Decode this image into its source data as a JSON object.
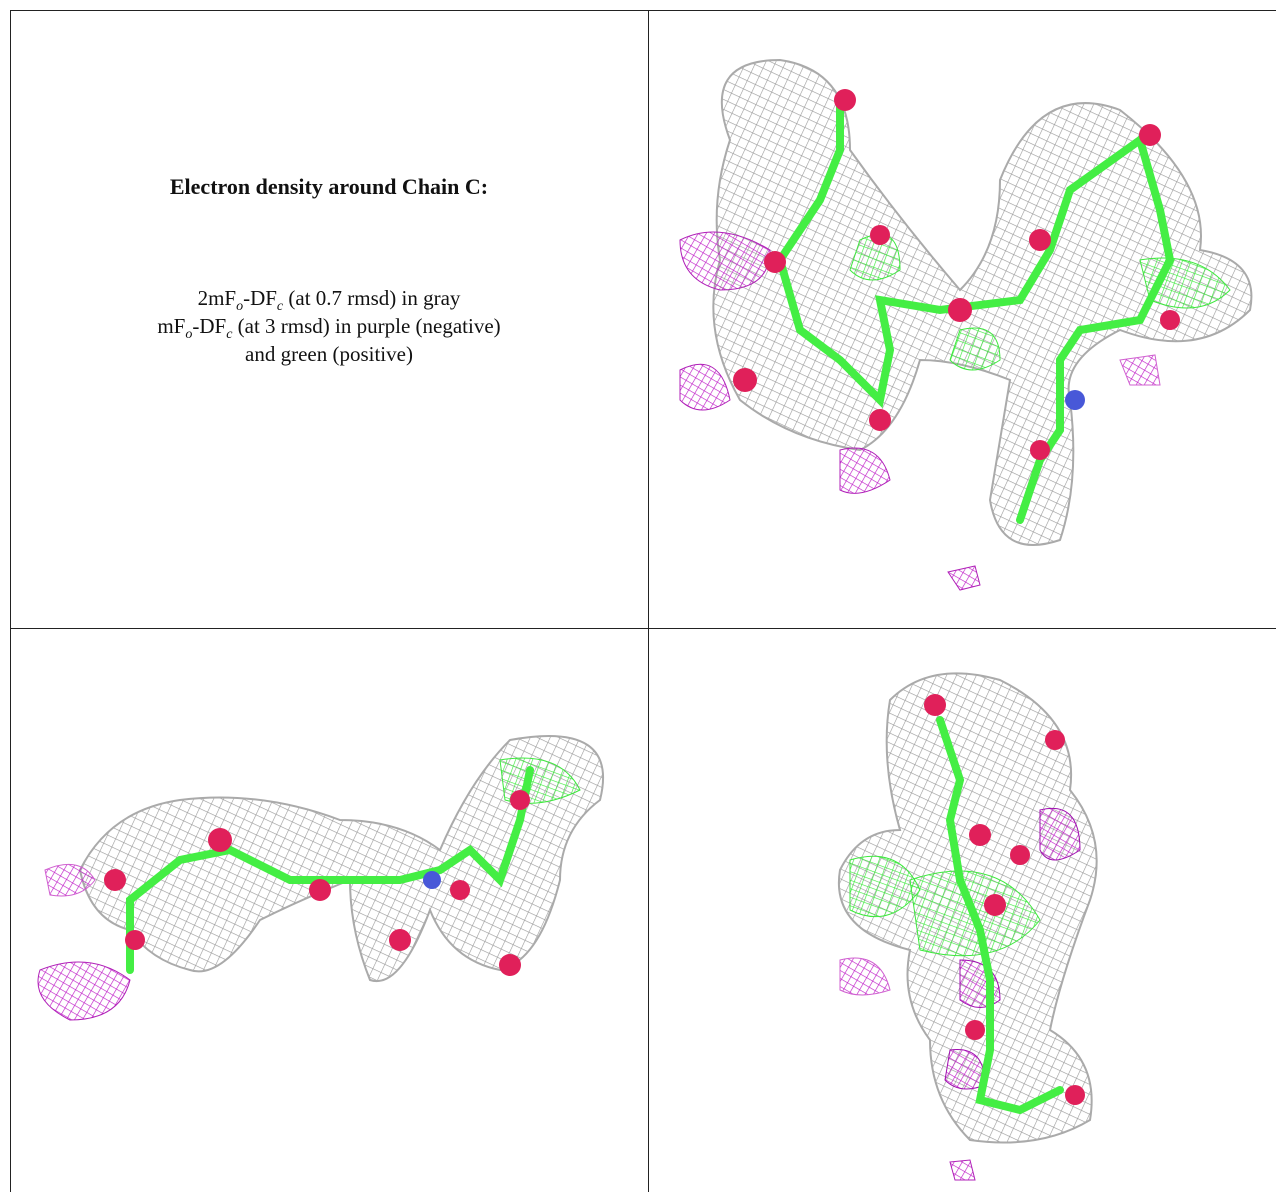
{
  "caption": {
    "title": "Electron density around Chain C:",
    "line1": {
      "a": "2mF",
      "b": "o",
      "c": "-DF",
      "d": "c",
      "e": " (at 0.7 rmsd) in gray"
    },
    "line2": {
      "a": "mF",
      "b": "o",
      "c": "-DF",
      "d": "c",
      "e": " (at 3 rmsd) in purple (negative)"
    },
    "line3": "and green (positive)"
  }
}
